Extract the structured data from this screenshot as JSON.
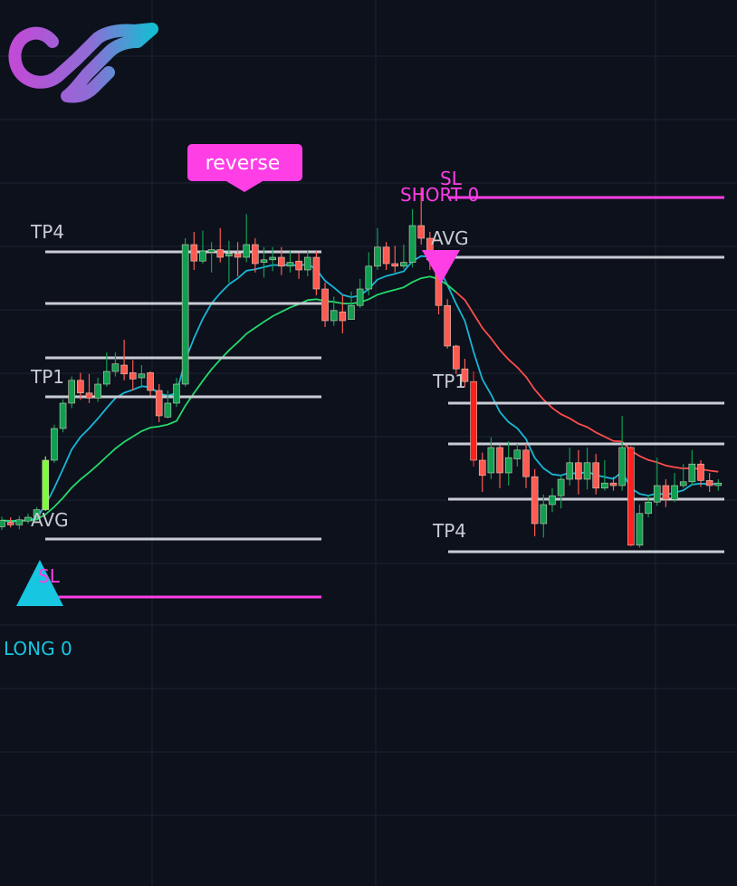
{
  "colors": {
    "background": "#0c111c",
    "grid": "#1b2230",
    "bull": "#109e51",
    "bear": "#ff5a52",
    "bear_strong": "#ff1f1f",
    "bull_bright": "#7bff3a",
    "ema_fast": "#18b6d6",
    "ema_slow_up": "#24d96b",
    "ema_slow_down": "#ff4d4d",
    "level_line": "#c9ccd3",
    "sl_line": "#ff3ee6",
    "long_marker": "#17c6e0",
    "short_marker": "#ff3ee6",
    "level_text": "#c9ccd3",
    "long_text": "#17c6e0",
    "short_text": "#ff3ee6",
    "bubble_bg": "#ff3ee6"
  },
  "logo": {
    "icon": "infinity-logo-icon"
  },
  "signals": {
    "long_label": "LONG 0",
    "short_label": "SHORT 0",
    "reverse_label": "reverse"
  },
  "levels": {
    "long": {
      "tp4": "TP4",
      "tp1": "TP1",
      "avg": "AVG",
      "sl": "SL"
    },
    "short": {
      "sl": "SL",
      "avg": "AVG",
      "tp1": "TP1",
      "tp4": "TP4"
    }
  },
  "chart_data": {
    "type": "candlestick",
    "title": "",
    "grid": true,
    "candles": [
      [
        0.55,
        0.65,
        0.71,
        0.5
      ],
      [
        0.62,
        0.58,
        0.7,
        0.54
      ],
      [
        0.58,
        0.66,
        0.72,
        0.51
      ],
      [
        0.64,
        0.7,
        0.76,
        0.6
      ],
      [
        0.7,
        0.82,
        0.86,
        0.68
      ],
      [
        0.82,
        1.6,
        1.66,
        0.8
      ],
      [
        1.6,
        2.1,
        2.16,
        1.56
      ],
      [
        2.1,
        2.5,
        2.56,
        2.04
      ],
      [
        2.5,
        2.86,
        2.92,
        2.42
      ],
      [
        2.86,
        2.66,
        2.98,
        2.55
      ],
      [
        2.66,
        2.58,
        2.96,
        2.5
      ],
      [
        2.58,
        2.8,
        2.9,
        2.52
      ],
      [
        2.8,
        3.0,
        3.3,
        2.76
      ],
      [
        3.0,
        3.12,
        3.3,
        2.92
      ],
      [
        3.1,
        2.96,
        3.5,
        2.86
      ],
      [
        2.98,
        2.88,
        3.18,
        2.7
      ],
      [
        2.9,
        2.96,
        3.1,
        2.74
      ],
      [
        2.98,
        2.7,
        3.0,
        2.62
      ],
      [
        2.7,
        2.3,
        2.8,
        2.2
      ],
      [
        2.28,
        2.5,
        2.7,
        2.26
      ],
      [
        2.5,
        2.8,
        2.9,
        2.44
      ],
      [
        2.8,
        5.0,
        5.1,
        2.76
      ],
      [
        5.0,
        4.74,
        5.2,
        4.6
      ],
      [
        4.74,
        4.9,
        5.22,
        4.7
      ],
      [
        4.88,
        4.92,
        5.04,
        4.56
      ],
      [
        4.92,
        4.8,
        5.26,
        4.72
      ],
      [
        4.82,
        4.86,
        5.06,
        4.4
      ],
      [
        4.86,
        4.8,
        5.04,
        4.5
      ],
      [
        4.8,
        5.0,
        5.48,
        4.72
      ],
      [
        5.0,
        4.7,
        5.1,
        4.56
      ],
      [
        4.72,
        4.76,
        4.96,
        4.48
      ],
      [
        4.76,
        4.8,
        4.96,
        4.58
      ],
      [
        4.8,
        4.66,
        4.96,
        4.52
      ],
      [
        4.66,
        4.72,
        4.9,
        4.56
      ],
      [
        4.74,
        4.6,
        4.86,
        4.46
      ],
      [
        4.6,
        4.8,
        4.9,
        4.5
      ],
      [
        4.8,
        4.3,
        4.9,
        4.2
      ],
      [
        4.3,
        3.8,
        4.4,
        3.7
      ],
      [
        3.8,
        3.96,
        4.18,
        3.72
      ],
      [
        3.94,
        3.8,
        4.2,
        3.6
      ],
      [
        3.82,
        4.04,
        4.26,
        3.84
      ],
      [
        4.04,
        4.3,
        4.46,
        4.0
      ],
      [
        4.3,
        4.66,
        4.88,
        4.2
      ],
      [
        4.66,
        4.96,
        5.26,
        4.6
      ],
      [
        4.96,
        4.7,
        5.04,
        4.6
      ],
      [
        4.7,
        4.66,
        4.98,
        4.56
      ],
      [
        4.66,
        4.72,
        5.0,
        4.62
      ],
      [
        4.72,
        5.3,
        5.56,
        4.64
      ],
      [
        5.3,
        5.1,
        5.9,
        5.0
      ],
      [
        5.1,
        4.76,
        5.2,
        4.6
      ],
      [
        4.76,
        4.04,
        4.8,
        3.9
      ],
      [
        4.04,
        3.4,
        4.14,
        3.36
      ],
      [
        3.4,
        3.04,
        3.42,
        2.96
      ],
      [
        3.04,
        2.84,
        3.2,
        2.76
      ],
      [
        2.84,
        1.6,
        3.0,
        1.5
      ],
      [
        1.6,
        1.36,
        1.72,
        1.1
      ],
      [
        1.4,
        1.8,
        1.96,
        1.3
      ],
      [
        1.8,
        1.4,
        1.84,
        1.16
      ],
      [
        1.4,
        1.64,
        1.9,
        1.2
      ],
      [
        1.62,
        1.76,
        1.86,
        1.5
      ],
      [
        1.76,
        1.34,
        1.86,
        1.16
      ],
      [
        1.34,
        0.6,
        1.46,
        0.4
      ],
      [
        0.6,
        0.9,
        1.06,
        0.38
      ],
      [
        0.9,
        1.04,
        1.16,
        0.78
      ],
      [
        1.04,
        1.3,
        1.36,
        0.84
      ],
      [
        1.3,
        1.56,
        1.8,
        1.2
      ],
      [
        1.56,
        1.3,
        1.76,
        1.06
      ],
      [
        1.3,
        1.56,
        1.8,
        1.14
      ],
      [
        1.56,
        1.16,
        1.7,
        1.06
      ],
      [
        1.16,
        1.24,
        1.6,
        1.12
      ],
      [
        1.24,
        1.2,
        1.34,
        1.12
      ],
      [
        1.2,
        1.8,
        2.3,
        1.12
      ],
      [
        1.8,
        0.26,
        1.82,
        0.24
      ],
      [
        0.26,
        0.76,
        0.9,
        0.22
      ],
      [
        0.76,
        0.94,
        1.06,
        0.7
      ],
      [
        0.94,
        1.2,
        1.64,
        0.88
      ],
      [
        1.2,
        0.98,
        1.3,
        0.86
      ],
      [
        0.98,
        1.2,
        1.4,
        0.94
      ],
      [
        1.2,
        1.26,
        1.54,
        1.16
      ],
      [
        1.26,
        1.54,
        1.76,
        1.2
      ],
      [
        1.54,
        1.28,
        1.6,
        1.18
      ],
      [
        1.28,
        1.2,
        1.4,
        1.1
      ],
      [
        1.2,
        1.24,
        1.3,
        1.12
      ]
    ]
  }
}
